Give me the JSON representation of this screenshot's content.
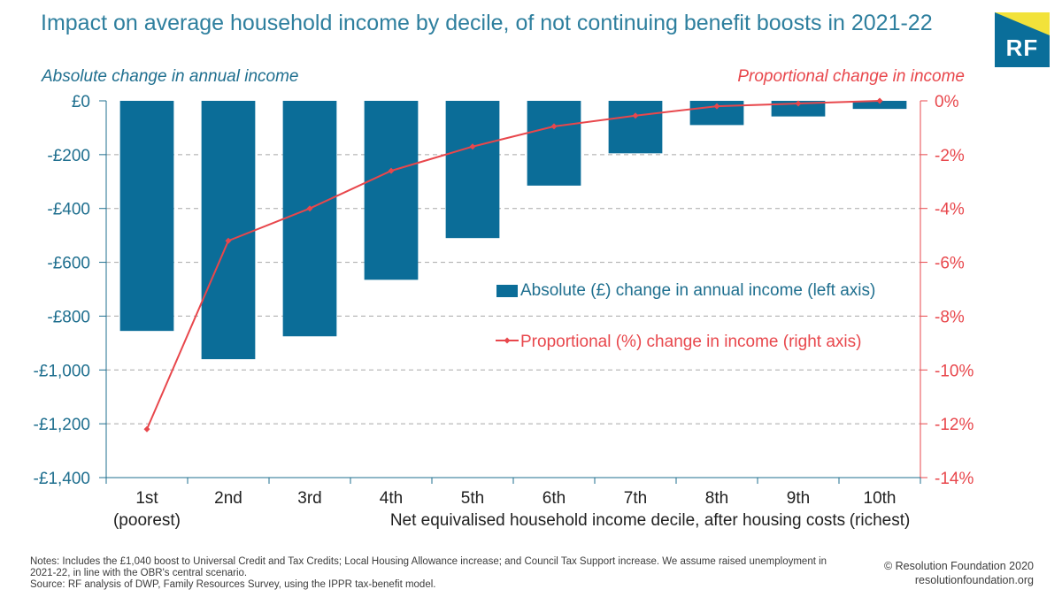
{
  "title": "Impact on average household income by decile, of not continuing benefit boosts in 2021-22",
  "logo_text": "RF",
  "chart_data": {
    "type": "bar",
    "categories": [
      "1st",
      "2nd",
      "3rd",
      "4th",
      "5th",
      "6th",
      "7th",
      "8th",
      "9th",
      "10th"
    ],
    "category_sublabels": [
      "(poorest)",
      "",
      "",
      "",
      "",
      "",
      "",
      "",
      "",
      "(richest)"
    ],
    "xlabel": "Net equivalised household income decile, after housing costs",
    "ylabel_left": "Absolute change in annual income",
    "ylabel_right": "Proportional change in income",
    "ylim_left": [
      -1400,
      0
    ],
    "ylim_right": [
      -14,
      0
    ],
    "yticks_left": [
      "£0",
      "-£200",
      "-£400",
      "-£600",
      "-£800",
      "-£1,000",
      "-£1,200",
      "-£1,400"
    ],
    "yticks_right": [
      "0%",
      "-2%",
      "-4%",
      "-6%",
      "-8%",
      "-10%",
      "-12%",
      "-14%"
    ],
    "series": [
      {
        "name": "Absolute (£) change in annual income (left axis)",
        "type": "bar",
        "axis": "left",
        "color": "#0b6d98",
        "values": [
          -855,
          -960,
          -875,
          -665,
          -510,
          -315,
          -195,
          -90,
          -58,
          -30
        ]
      },
      {
        "name": "Proportional (%) change in income (right axis)",
        "type": "line",
        "axis": "right",
        "color": "#e8474c",
        "values": [
          -12.2,
          -5.2,
          -4.0,
          -2.6,
          -1.7,
          -0.95,
          -0.55,
          -0.2,
          -0.1,
          0.0
        ]
      }
    ],
    "grid": "horizontal dashed",
    "legend_position": "center-right"
  },
  "notes": "Notes: Includes the £1,040 boost to Universal Credit and Tax Credits; Local Housing Allowance increase; and Council Tax Support increase. We assume raised unemployment in 2021-22, in line with the OBR's central scenario.",
  "source": "Source: RF analysis of DWP, Family Resources Survey, using the IPPR tax-benefit model.",
  "credit_line1": "© Resolution Foundation 2020",
  "credit_line2": "resolutionfoundation.org"
}
